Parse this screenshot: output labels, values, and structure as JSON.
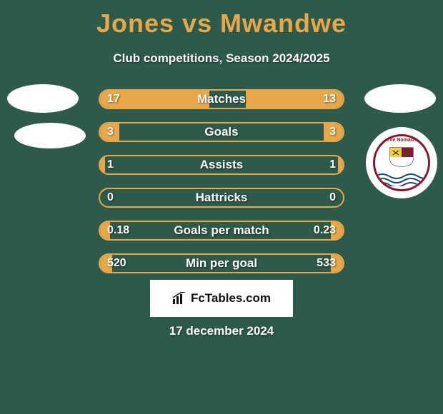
{
  "title": "Jones vs Mwandwe",
  "subtitle": "Club competitions, Season 2024/2025",
  "date": "17 december 2024",
  "logo_text": "FcTables.com",
  "colors": {
    "background": "#2d5a4a",
    "accent": "#e8a84a",
    "text": "#ffffff",
    "badge_border": "#8a1530"
  },
  "bars": [
    {
      "label": "Matches",
      "left": "17",
      "right": "13",
      "left_pct": 45,
      "right_pct": 40
    },
    {
      "label": "Goals",
      "left": "3",
      "right": "3",
      "left_pct": 8,
      "right_pct": 8
    },
    {
      "label": "Assists",
      "left": "1",
      "right": "1",
      "left_pct": 2,
      "right_pct": 2
    },
    {
      "label": "Hattricks",
      "left": "0",
      "right": "0",
      "left_pct": 0,
      "right_pct": 0
    },
    {
      "label": "Goals per match",
      "left": "0.18",
      "right": "0.23",
      "left_pct": 4,
      "right_pct": 5
    },
    {
      "label": "Min per goal",
      "left": "520",
      "right": "533",
      "left_pct": 5,
      "right_pct": 5
    }
  ],
  "badge": {
    "top_text": "The Nomads"
  }
}
